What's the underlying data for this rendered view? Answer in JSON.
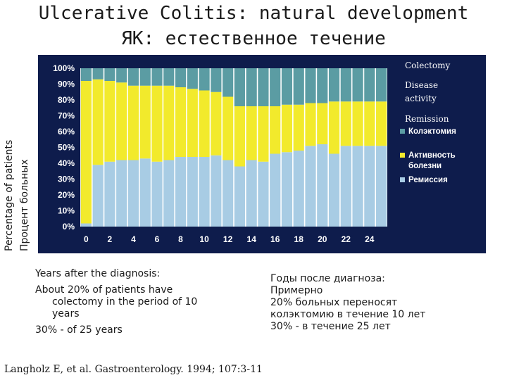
{
  "title": {
    "line1": "Ulcerative Colitis: natural development",
    "line2": "ЯК: естественное течение"
  },
  "ylabel": {
    "en": "Percentage of patients",
    "ru": "Процент больных"
  },
  "legend_en": {
    "colectomy": "Colectomy",
    "disease_activity_1": "Disease",
    "disease_activity_2": "activity",
    "remission": "Remission"
  },
  "chart_data": {
    "type": "bar",
    "stacked": true,
    "x": [
      0,
      1,
      2,
      3,
      4,
      5,
      6,
      7,
      8,
      9,
      10,
      11,
      12,
      13,
      14,
      15,
      16,
      17,
      18,
      19,
      20,
      21,
      22,
      23,
      24,
      25
    ],
    "xticks": [
      "0",
      "2",
      "4",
      "6",
      "8",
      "10",
      "12",
      "14",
      "16",
      "18",
      "20",
      "22",
      "24"
    ],
    "yticks": [
      "0%",
      "10%",
      "20%",
      "30%",
      "40%",
      "50%",
      "60%",
      "70%",
      "80%",
      "90%",
      "100%"
    ],
    "ylim": [
      0,
      100
    ],
    "legend_position": "right",
    "series": [
      {
        "name": "Ремиссия",
        "color": "#a8cce4",
        "values": [
          2,
          39,
          41,
          42,
          42,
          43,
          41,
          42,
          44,
          44,
          44,
          45,
          42,
          38,
          42,
          41,
          46,
          47,
          48,
          51,
          52,
          46,
          51,
          51,
          51,
          51
        ]
      },
      {
        "name": "Активность болезни",
        "color": "#f2ea2c",
        "values": [
          90,
          54,
          51,
          49,
          47,
          46,
          48,
          47,
          44,
          43,
          42,
          40,
          40,
          38,
          34,
          35,
          30,
          30,
          29,
          27,
          26,
          33,
          28,
          28,
          28,
          28
        ]
      },
      {
        "name": "Колэктомия",
        "color": "#5b9ca3",
        "values": [
          8,
          7,
          8,
          9,
          11,
          11,
          11,
          11,
          12,
          13,
          14,
          15,
          18,
          24,
          24,
          24,
          24,
          23,
          23,
          22,
          22,
          21,
          21,
          21,
          21,
          21
        ]
      }
    ],
    "legend_ru": [
      {
        "lines": [
          "Колэктомия"
        ],
        "color": "#5b9ca3"
      },
      {
        "lines": [
          "Активность",
          "болезни"
        ],
        "color": "#f2ea2c"
      },
      {
        "lines": [
          "Ремиссия"
        ],
        "color": "#a8cce4"
      }
    ]
  },
  "notes_en": {
    "line1": "Years after the diagnosis:",
    "line2": "About 20% of patients have",
    "line3": "colectomy in the period of 10",
    "line4": "years",
    "line5": "30% - of 25 years"
  },
  "notes_ru": {
    "line1": "Годы после диагноза:",
    "line2": "Примерно",
    "line3": "20% больных переносят",
    "line4": "колэктомию в течение 10 лет",
    "line5": "30% - в течение 25 лет"
  },
  "citation": "Langholz E, et al. Gastroenterology. 1994; 107:3-11"
}
